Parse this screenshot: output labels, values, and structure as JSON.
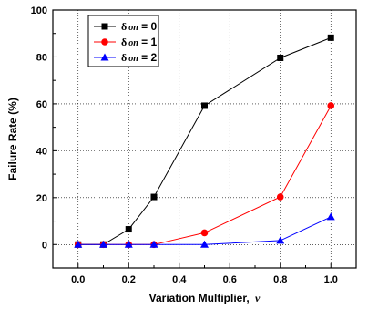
{
  "chart_data": {
    "type": "line",
    "xlabel": "Variation Multiplier,",
    "xlabel_symbol": "ν",
    "ylabel": "Failure Rate (%)",
    "xlim": [
      -0.1,
      1.1
    ],
    "ylim": [
      -10,
      100
    ],
    "xticks": [
      "0.0",
      "0.2",
      "0.4",
      "0.6",
      "0.8",
      "1.0"
    ],
    "yticks": [
      "0",
      "20",
      "40",
      "60",
      "80",
      "100"
    ],
    "grid": "dotted",
    "legend_position": "top-left",
    "series": [
      {
        "name": "δon = 0",
        "legend": {
          "symbol": "δ",
          "subscript": "on",
          "rest": " = 0"
        },
        "color": "#000000",
        "marker": "square",
        "x": [
          0.0,
          0.1,
          0.2,
          0.3,
          0.5,
          0.8,
          1.0
        ],
        "y": [
          0,
          0,
          6.5,
          20.3,
          59.2,
          79.6,
          88.2
        ]
      },
      {
        "name": "δon = 1",
        "legend": {
          "symbol": "δ",
          "subscript": "on",
          "rest": " = 1"
        },
        "color": "#ff0000",
        "marker": "circle",
        "x": [
          0.0,
          0.1,
          0.2,
          0.3,
          0.5,
          0.8,
          1.0
        ],
        "y": [
          0,
          0,
          0,
          0,
          5.0,
          20.3,
          59.2
        ]
      },
      {
        "name": "δon = 2",
        "legend": {
          "symbol": "δ",
          "subscript": "on",
          "rest": " = 2"
        },
        "color": "#0000ff",
        "marker": "triangle",
        "x": [
          0.0,
          0.1,
          0.2,
          0.3,
          0.5,
          0.8,
          1.0
        ],
        "y": [
          0,
          0,
          0,
          0,
          0,
          1.7,
          11.8
        ]
      }
    ]
  }
}
